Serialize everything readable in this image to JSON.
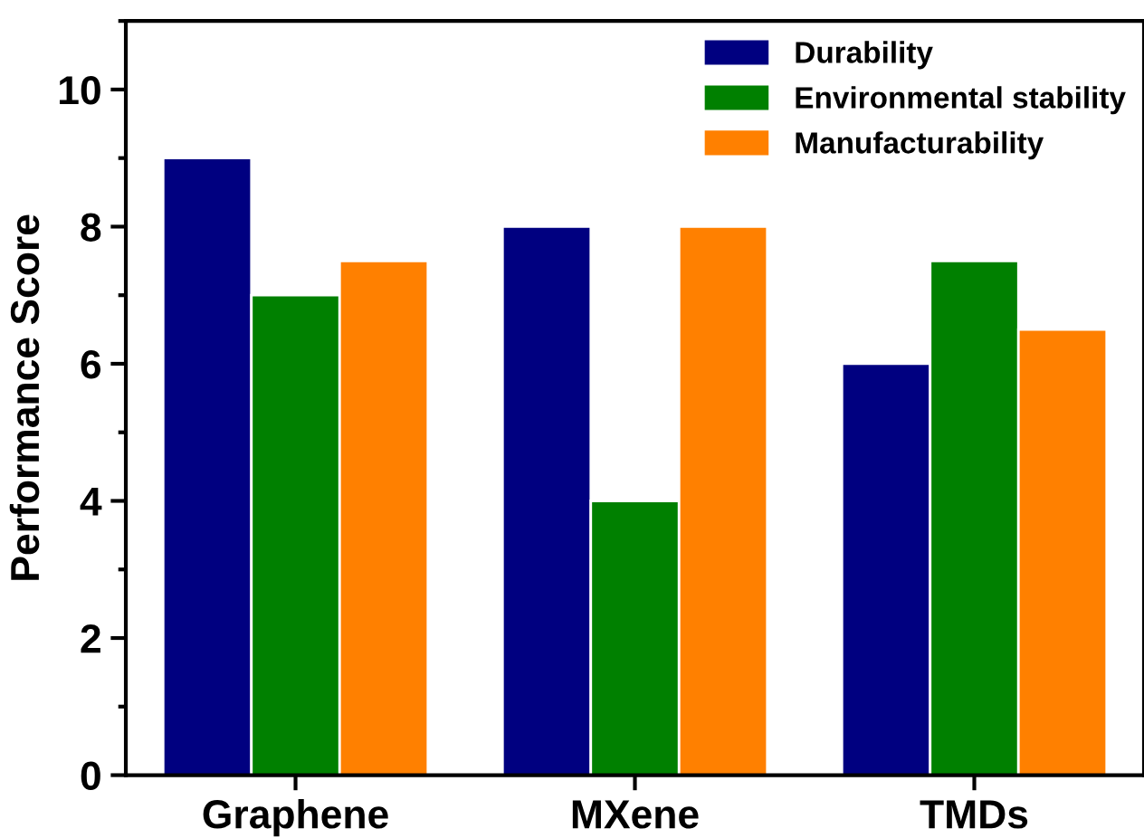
{
  "chart_data": {
    "type": "bar",
    "ylabel": "Performance Score",
    "categories": [
      "Graphene",
      "MXene",
      "TMDs"
    ],
    "series": [
      {
        "name": "Durability",
        "color": "#000080",
        "values": [
          9,
          8,
          6
        ]
      },
      {
        "name": "Environmental stability",
        "color": "#008000",
        "values": [
          7,
          4,
          7.5
        ]
      },
      {
        "name": "Manufacturability",
        "color": "#ff8000",
        "values": [
          7.5,
          8,
          6.5
        ]
      }
    ],
    "ylim": [
      0,
      11
    ],
    "yticks": [
      0,
      2,
      4,
      6,
      8,
      10
    ],
    "grid": false,
    "legend": "top right"
  }
}
